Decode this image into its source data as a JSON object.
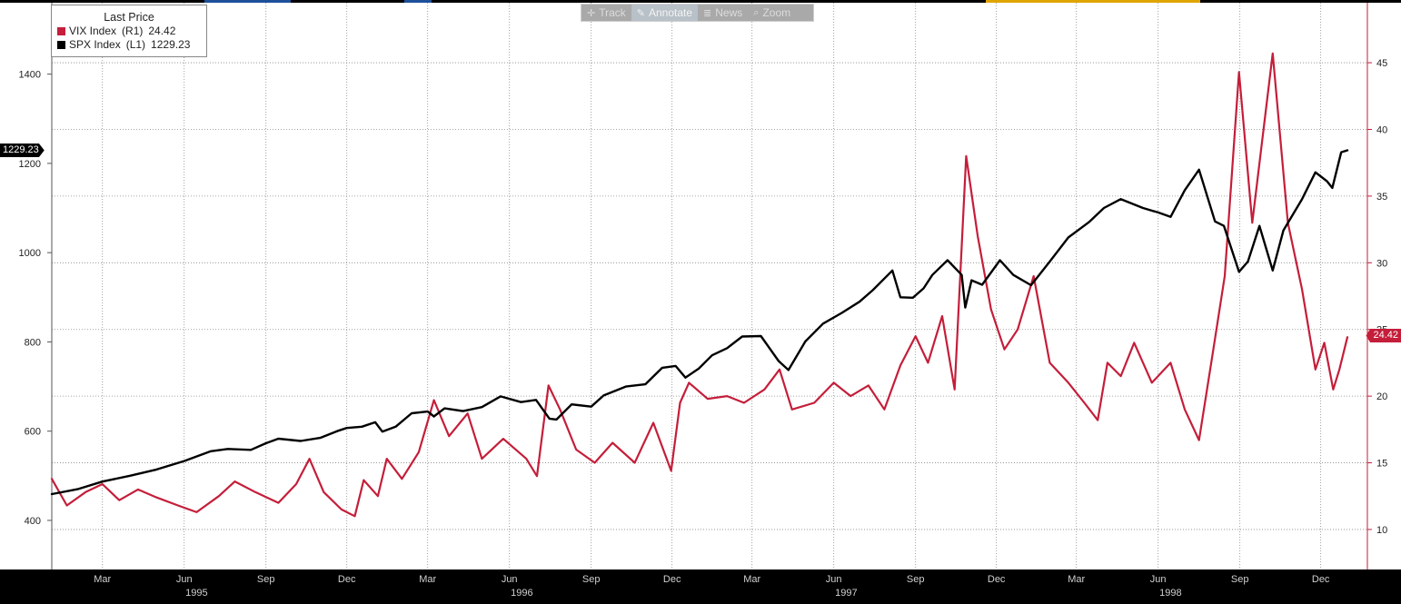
{
  "toolbar": {
    "track": "Track",
    "annotate": "Annotate",
    "news": "News",
    "zoom": "Zoom"
  },
  "legend": {
    "title": "Last Price",
    "series": [
      {
        "name": "VIX Index",
        "axis": "(R1)",
        "value": "24.42",
        "color": "#c41e3a"
      },
      {
        "name": "SPX Index",
        "axis": "(L1)",
        "value": "1229.23",
        "color": "#000000"
      }
    ]
  },
  "last_tags": {
    "left": "1229.23",
    "right": "24.42"
  },
  "colors": {
    "vix": "#c41e3a",
    "spx": "#000000",
    "background": "#ffffff",
    "frame": "#000000"
  },
  "chart_data": {
    "type": "line",
    "x_range": [
      "1995-01-03",
      "1998-12-31"
    ],
    "left_axis": {
      "ticks": [
        400,
        600,
        800,
        1000,
        1200,
        1400
      ],
      "range": [
        290,
        1560
      ]
    },
    "right_axis": {
      "ticks": [
        10,
        15,
        20,
        25,
        30,
        35,
        40,
        45
      ],
      "range": [
        7.0,
        49.5
      ]
    },
    "x_ticks": [
      {
        "date": "1995-03-01",
        "label": "Mar"
      },
      {
        "date": "1995-06-01",
        "label": "Jun"
      },
      {
        "date": "1995-09-01",
        "label": "Sep"
      },
      {
        "date": "1995-12-01",
        "label": "Dec"
      },
      {
        "date": "1996-03-01",
        "label": "Mar"
      },
      {
        "date": "1996-06-01",
        "label": "Jun"
      },
      {
        "date": "1996-09-01",
        "label": "Sep"
      },
      {
        "date": "1996-12-01",
        "label": "Dec"
      },
      {
        "date": "1997-03-01",
        "label": "Mar"
      },
      {
        "date": "1997-06-01",
        "label": "Jun"
      },
      {
        "date": "1997-09-01",
        "label": "Sep"
      },
      {
        "date": "1997-12-01",
        "label": "Dec"
      },
      {
        "date": "1998-03-01",
        "label": "Mar"
      },
      {
        "date": "1998-06-01",
        "label": "Jun"
      },
      {
        "date": "1998-09-01",
        "label": "Sep"
      },
      {
        "date": "1998-12-01",
        "label": "Dec"
      }
    ],
    "year_labels": [
      {
        "date": "1995-06-15",
        "label": "1995"
      },
      {
        "date": "1996-06-15",
        "label": "1996"
      },
      {
        "date": "1997-06-15",
        "label": "1997"
      },
      {
        "date": "1998-06-15",
        "label": "1998"
      }
    ],
    "grid": true,
    "series": [
      {
        "name": "SPX Index",
        "axis": "left",
        "points": [
          [
            "1995-01-03",
            459
          ],
          [
            "1995-02-01",
            470
          ],
          [
            "1995-03-01",
            487
          ],
          [
            "1995-04-01",
            500
          ],
          [
            "1995-05-01",
            514
          ],
          [
            "1995-06-01",
            533
          ],
          [
            "1995-07-01",
            555
          ],
          [
            "1995-07-20",
            560
          ],
          [
            "1995-08-15",
            558
          ],
          [
            "1995-09-01",
            573
          ],
          [
            "1995-09-15",
            583
          ],
          [
            "1995-10-10",
            578
          ],
          [
            "1995-11-01",
            585
          ],
          [
            "1995-11-20",
            600
          ],
          [
            "1995-12-01",
            607
          ],
          [
            "1995-12-18",
            610
          ],
          [
            "1996-01-02",
            620
          ],
          [
            "1996-01-10",
            599
          ],
          [
            "1996-01-25",
            610
          ],
          [
            "1996-02-12",
            640
          ],
          [
            "1996-03-01",
            644
          ],
          [
            "1996-03-08",
            633
          ],
          [
            "1996-03-20",
            651
          ],
          [
            "1996-04-10",
            645
          ],
          [
            "1996-05-01",
            654
          ],
          [
            "1996-05-22",
            678
          ],
          [
            "1996-06-14",
            665
          ],
          [
            "1996-07-01",
            670
          ],
          [
            "1996-07-16",
            628
          ],
          [
            "1996-07-24",
            626
          ],
          [
            "1996-08-10",
            660
          ],
          [
            "1996-09-01",
            655
          ],
          [
            "1996-09-15",
            680
          ],
          [
            "1996-10-10",
            700
          ],
          [
            "1996-11-01",
            705
          ],
          [
            "1996-11-20",
            742
          ],
          [
            "1996-12-05",
            746
          ],
          [
            "1996-12-16",
            720
          ],
          [
            "1996-12-31",
            740
          ],
          [
            "1997-01-15",
            770
          ],
          [
            "1997-02-01",
            786
          ],
          [
            "1997-02-18",
            812
          ],
          [
            "1997-03-11",
            813
          ],
          [
            "1997-03-31",
            757
          ],
          [
            "1997-04-11",
            737
          ],
          [
            "1997-04-30",
            801
          ],
          [
            "1997-05-20",
            841
          ],
          [
            "1997-06-10",
            865
          ],
          [
            "1997-06-30",
            890
          ],
          [
            "1997-07-15",
            916
          ],
          [
            "1997-08-06",
            960
          ],
          [
            "1997-08-15",
            900
          ],
          [
            "1997-08-29",
            899
          ],
          [
            "1997-09-10",
            920
          ],
          [
            "1997-09-20",
            950
          ],
          [
            "1997-10-07",
            983
          ],
          [
            "1997-10-23",
            950
          ],
          [
            "1997-10-27",
            877
          ],
          [
            "1997-11-03",
            938
          ],
          [
            "1997-11-15",
            928
          ],
          [
            "1997-12-05",
            983
          ],
          [
            "1997-12-20",
            950
          ],
          [
            "1998-01-09",
            927
          ],
          [
            "1998-01-30",
            980
          ],
          [
            "1998-02-20",
            1034
          ],
          [
            "1998-03-15",
            1068
          ],
          [
            "1998-04-01",
            1100
          ],
          [
            "1998-04-20",
            1120
          ],
          [
            "1998-05-15",
            1100
          ],
          [
            "1998-06-01",
            1090
          ],
          [
            "1998-06-15",
            1080
          ],
          [
            "1998-07-01",
            1140
          ],
          [
            "1998-07-17",
            1186
          ],
          [
            "1998-08-04",
            1070
          ],
          [
            "1998-08-14",
            1060
          ],
          [
            "1998-08-31",
            957
          ],
          [
            "1998-09-10",
            980
          ],
          [
            "1998-09-23",
            1060
          ],
          [
            "1998-10-08",
            960
          ],
          [
            "1998-10-20",
            1050
          ],
          [
            "1998-11-10",
            1120
          ],
          [
            "1998-11-25",
            1180
          ],
          [
            "1998-12-08",
            1160
          ],
          [
            "1998-12-14",
            1145
          ],
          [
            "1998-12-24",
            1225
          ],
          [
            "1998-12-31",
            1229.23
          ]
        ]
      },
      {
        "name": "VIX Index",
        "axis": "right",
        "points": [
          [
            "1995-01-03",
            13.8
          ],
          [
            "1995-01-20",
            11.8
          ],
          [
            "1995-02-10",
            12.8
          ],
          [
            "1995-03-01",
            13.4
          ],
          [
            "1995-03-20",
            12.2
          ],
          [
            "1995-04-10",
            13.0
          ],
          [
            "1995-05-01",
            12.4
          ],
          [
            "1995-05-25",
            11.8
          ],
          [
            "1995-06-15",
            11.3
          ],
          [
            "1995-07-10",
            12.5
          ],
          [
            "1995-07-28",
            13.6
          ],
          [
            "1995-08-20",
            12.8
          ],
          [
            "1995-09-15",
            12.0
          ],
          [
            "1995-10-05",
            13.4
          ],
          [
            "1995-10-20",
            15.3
          ],
          [
            "1995-11-05",
            12.8
          ],
          [
            "1995-11-25",
            11.5
          ],
          [
            "1995-12-10",
            11.0
          ],
          [
            "1995-12-20",
            13.7
          ],
          [
            "1996-01-05",
            12.5
          ],
          [
            "1996-01-15",
            15.3
          ],
          [
            "1996-02-01",
            13.8
          ],
          [
            "1996-02-20",
            15.8
          ],
          [
            "1996-03-08",
            19.7
          ],
          [
            "1996-03-25",
            17.0
          ],
          [
            "1996-04-15",
            18.7
          ],
          [
            "1996-05-01",
            15.3
          ],
          [
            "1996-05-25",
            16.8
          ],
          [
            "1996-06-20",
            15.3
          ],
          [
            "1996-07-02",
            14.0
          ],
          [
            "1996-07-15",
            20.8
          ],
          [
            "1996-07-28",
            19.0
          ],
          [
            "1996-08-15",
            16.0
          ],
          [
            "1996-09-05",
            15.0
          ],
          [
            "1996-09-25",
            16.5
          ],
          [
            "1996-10-20",
            15.0
          ],
          [
            "1996-11-10",
            18.0
          ],
          [
            "1996-11-30",
            14.4
          ],
          [
            "1996-12-10",
            19.5
          ],
          [
            "1996-12-20",
            21.0
          ],
          [
            "1997-01-10",
            19.8
          ],
          [
            "1997-02-01",
            20.0
          ],
          [
            "1997-02-20",
            19.5
          ],
          [
            "1997-03-15",
            20.5
          ],
          [
            "1997-04-01",
            22.0
          ],
          [
            "1997-04-15",
            19.0
          ],
          [
            "1997-05-10",
            19.5
          ],
          [
            "1997-06-01",
            21.0
          ],
          [
            "1997-06-20",
            20.0
          ],
          [
            "1997-07-10",
            20.8
          ],
          [
            "1997-07-28",
            19.0
          ],
          [
            "1997-08-15",
            22.3
          ],
          [
            "1997-09-01",
            24.5
          ],
          [
            "1997-09-15",
            22.5
          ],
          [
            "1997-10-01",
            26.0
          ],
          [
            "1997-10-15",
            20.5
          ],
          [
            "1997-10-28",
            38.0
          ],
          [
            "1997-11-10",
            32.0
          ],
          [
            "1997-11-25",
            26.5
          ],
          [
            "1997-12-10",
            23.5
          ],
          [
            "1997-12-25",
            25.0
          ],
          [
            "1998-01-12",
            29.0
          ],
          [
            "1998-01-30",
            22.5
          ],
          [
            "1998-02-20",
            21.0
          ],
          [
            "1998-03-10",
            19.5
          ],
          [
            "1998-03-25",
            18.2
          ],
          [
            "1998-04-05",
            22.5
          ],
          [
            "1998-04-20",
            21.5
          ],
          [
            "1998-05-05",
            24.0
          ],
          [
            "1998-05-25",
            21.0
          ],
          [
            "1998-06-15",
            22.5
          ],
          [
            "1998-07-01",
            19.0
          ],
          [
            "1998-07-17",
            16.7
          ],
          [
            "1998-08-01",
            23.0
          ],
          [
            "1998-08-15",
            29.0
          ],
          [
            "1998-08-31",
            44.3
          ],
          [
            "1998-09-15",
            33.0
          ],
          [
            "1998-10-08",
            45.7
          ],
          [
            "1998-10-25",
            33.0
          ],
          [
            "1998-11-10",
            28.0
          ],
          [
            "1998-11-25",
            22.0
          ],
          [
            "1998-12-05",
            24.0
          ],
          [
            "1998-12-15",
            20.5
          ],
          [
            "1998-12-22",
            22.0
          ],
          [
            "1998-12-31",
            24.42
          ]
        ]
      }
    ]
  }
}
